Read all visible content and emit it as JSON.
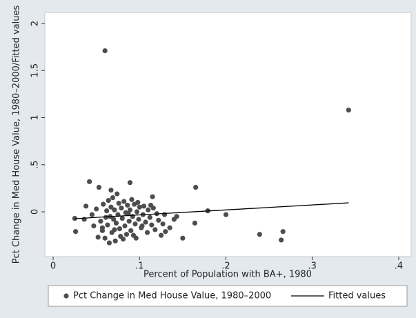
{
  "chart_data": {
    "type": "scatter",
    "x_label": "Percent of Population with BA+, 1980",
    "y_label": "Pct Change in Med House Value, 1980–2000/Fitted values",
    "xlim": [
      -0.0096,
      0.4144
    ],
    "ylim": [
      -0.476,
      2.117
    ],
    "xticks": [
      0,
      {
        "value": 0.1,
        "label": ".1"
      },
      {
        "value": 0.2,
        "label": ".2"
      },
      {
        "value": 0.3,
        "label": ".3"
      },
      {
        "value": 0.4,
        "label": ".4"
      }
    ],
    "yticks": [
      0,
      {
        "value": 0.5,
        "label": ".5"
      },
      1,
      1.5,
      2
    ],
    "grid": false,
    "legend": "bottom",
    "series": [
      {
        "name": "Pct Change in Med House Value, 1980–2000",
        "color": "#4d4d4d",
        "mark": "point",
        "x": [
          0.06,
          0.342,
          0.042,
          0.089,
          0.165,
          0.053,
          0.115,
          0.067,
          0.179,
          0.2,
          0.266,
          0.264,
          0.239,
          0.15,
          0.164,
          0.143,
          0.129,
          0.026,
          0.025,
          0.036,
          0.038,
          0.045,
          0.05,
          0.055,
          0.057,
          0.058,
          0.06,
          0.062,
          0.063,
          0.064,
          0.066,
          0.067,
          0.068,
          0.069,
          0.07,
          0.071,
          0.072,
          0.073,
          0.074,
          0.075,
          0.076,
          0.077,
          0.078,
          0.079,
          0.08,
          0.082,
          0.083,
          0.084,
          0.085,
          0.086,
          0.088,
          0.089,
          0.09,
          0.091,
          0.092,
          0.094,
          0.095,
          0.096,
          0.097,
          0.099,
          0.1,
          0.102,
          0.104,
          0.105,
          0.107,
          0.109,
          0.11,
          0.112,
          0.114,
          0.116,
          0.118,
          0.12,
          0.122,
          0.125,
          0.127,
          0.13,
          0.135,
          0.14,
          0.057,
          0.061,
          0.065,
          0.071,
          0.081,
          0.087,
          0.093,
          0.103,
          0.047,
          0.052,
          0.098,
          0.113
        ],
        "values": [
          1.71,
          1.08,
          0.32,
          0.31,
          0.26,
          0.26,
          0.16,
          0.23,
          0.01,
          -0.03,
          -0.21,
          -0.3,
          -0.24,
          -0.28,
          -0.12,
          -0.05,
          -0.03,
          -0.21,
          -0.07,
          -0.08,
          0.06,
          -0.03,
          0.03,
          -0.1,
          -0.2,
          0.08,
          -0.28,
          0.01,
          -0.14,
          0.12,
          -0.05,
          0.05,
          -0.22,
          0.15,
          -0.08,
          0.02,
          -0.31,
          -0.12,
          0.19,
          -0.03,
          0.09,
          -0.18,
          -0.26,
          0.04,
          -0.07,
          0.11,
          -0.15,
          -0.01,
          -0.24,
          0.07,
          -0.1,
          0.02,
          -0.2,
          0.13,
          -0.05,
          0.08,
          -0.13,
          -0.28,
          0.0,
          -0.08,
          0.05,
          -0.17,
          -0.03,
          0.06,
          -0.11,
          -0.22,
          0.02,
          -0.06,
          -0.14,
          0.04,
          -0.19,
          -0.02,
          -0.09,
          -0.25,
          -0.13,
          -0.21,
          -0.17,
          -0.08,
          -0.17,
          -0.06,
          -0.33,
          -0.19,
          -0.29,
          -0.02,
          -0.25,
          -0.15,
          -0.15,
          -0.27,
          0.1,
          0.07
        ]
      },
      {
        "name": "Fitted values",
        "color": "#000000",
        "mark": "line",
        "x": [
          0.025,
          0.342
        ],
        "values": [
          -0.073,
          0.095
        ]
      }
    ]
  }
}
